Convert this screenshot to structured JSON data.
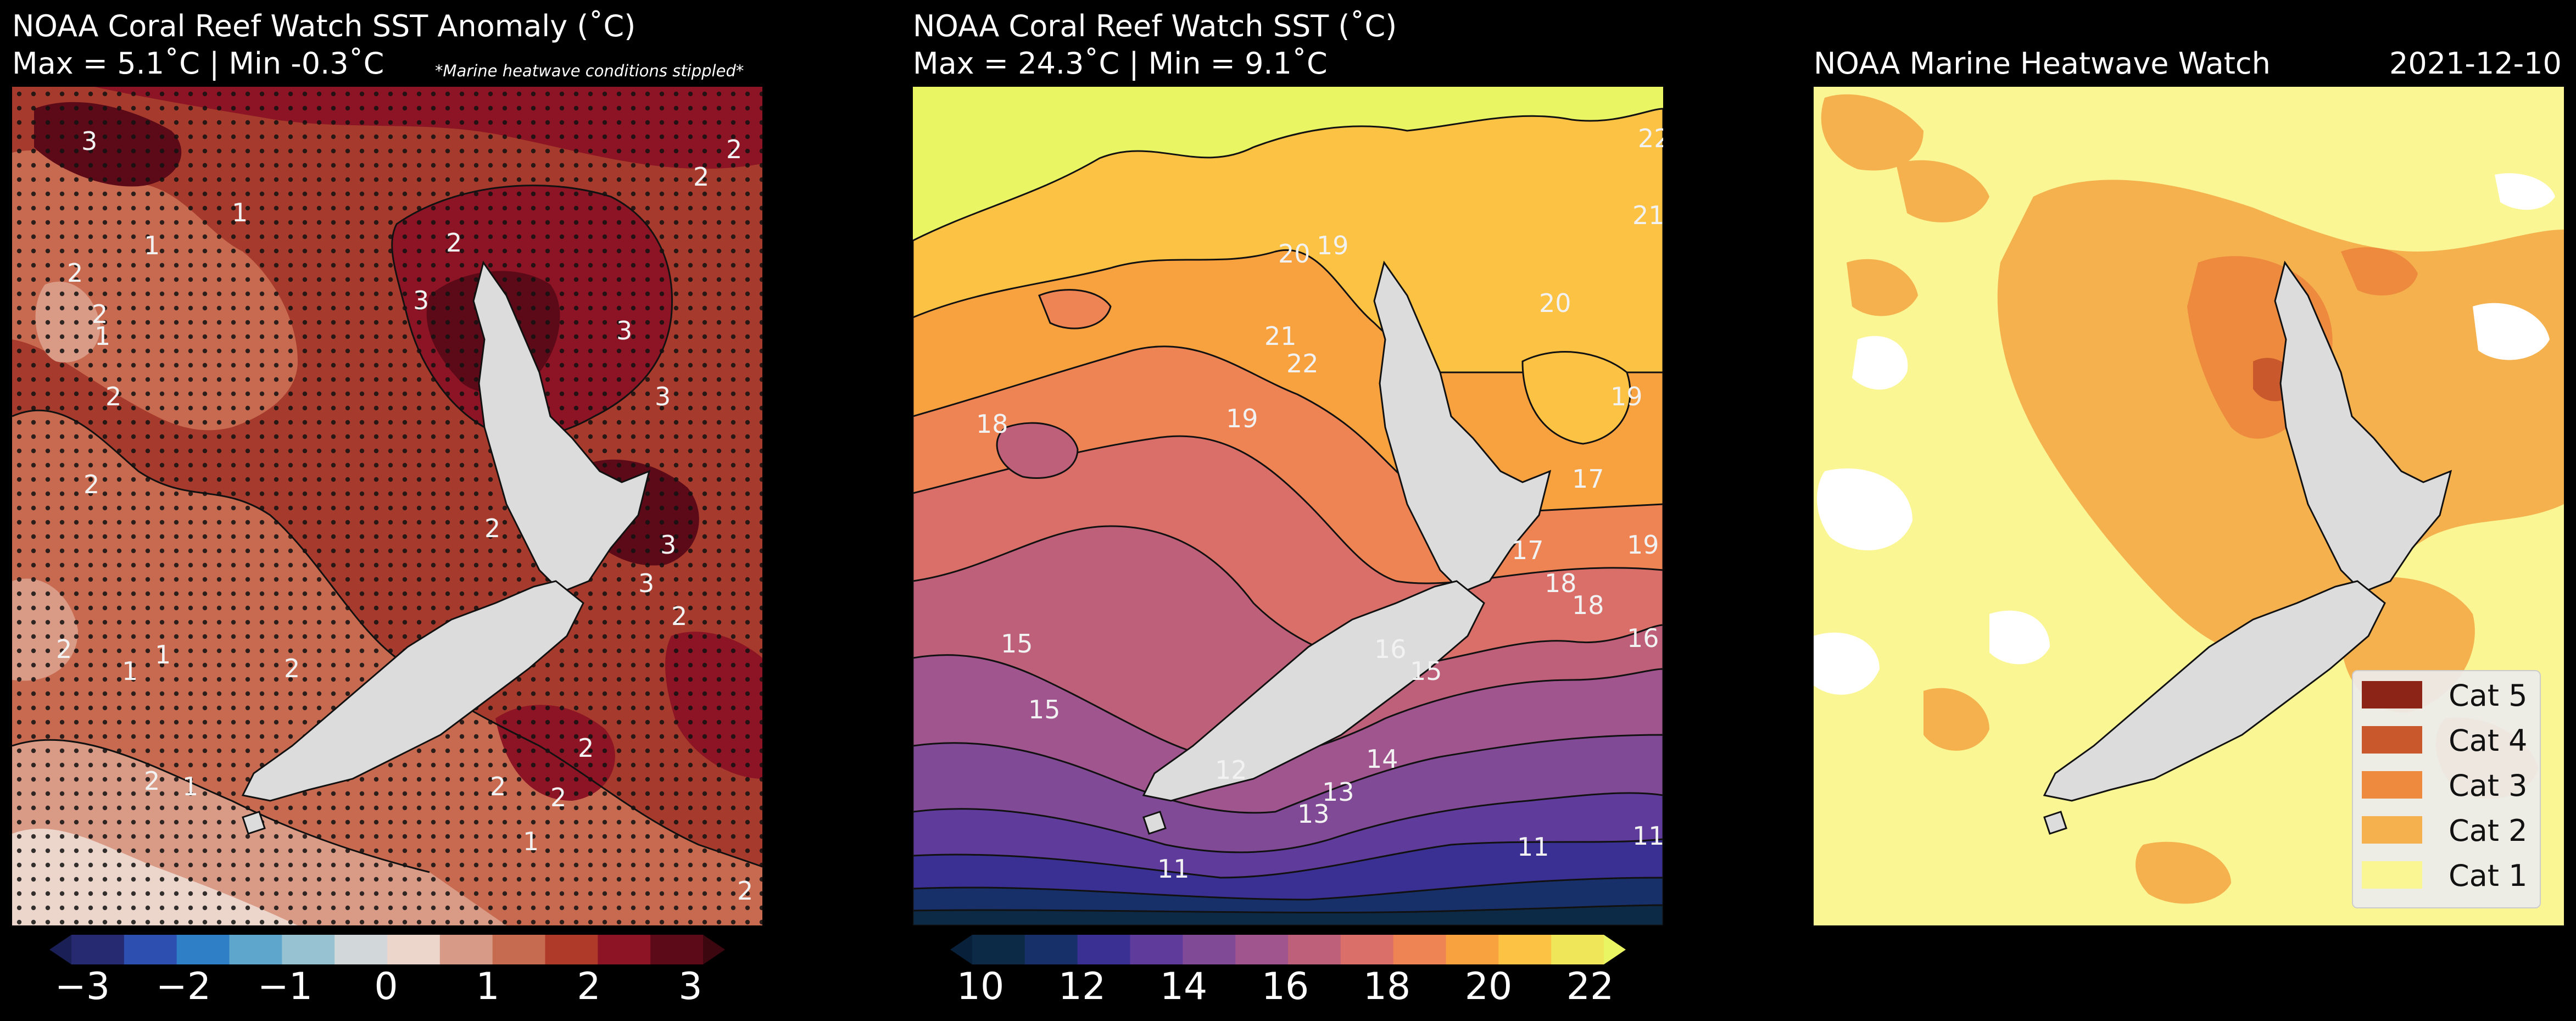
{
  "panels": [
    {
      "title": "NOAA Coral Reef Watch SST Anomaly (˚C)",
      "subtitle": "Max = 5.1˚C | Min -0.3˚C",
      "note": "*Marine heatwave conditions stippled*",
      "colorbar": {
        "ticks": [
          "−3",
          "−2",
          "−1",
          "0",
          "1",
          "2",
          "3"
        ],
        "colors": [
          "#262a70",
          "#2c4fb0",
          "#2e7fc6",
          "#5ea6cb",
          "#96c2d2",
          "#d2d8da",
          "#ecd6cc",
          "#d69a86",
          "#c66a50",
          "#b03a2a",
          "#8c1424",
          "#5c0a18"
        ],
        "extend_low": "#1a1f55",
        "extend_high": "#3d0710"
      },
      "contour_labels": [
        "3",
        "2",
        "2",
        "2",
        "2",
        "1",
        "1",
        "2",
        "1",
        "2",
        "3",
        "3",
        "3",
        "2",
        "3",
        "3",
        "2",
        "2",
        "1",
        "1",
        "2",
        "2",
        "2",
        "2",
        "2",
        "1",
        "1",
        "2",
        "2"
      ]
    },
    {
      "title": "NOAA Coral Reef Watch SST (˚C)",
      "subtitle": "Max = 24.3˚C | Min = 9.1˚C",
      "colorbar": {
        "ticks": [
          "10",
          "12",
          "14",
          "16",
          "18",
          "20",
          "22"
        ],
        "colors": [
          "#0c2a45",
          "#17306a",
          "#3a2f92",
          "#5f3c9c",
          "#814a96",
          "#a0558f",
          "#be6079",
          "#d96f68",
          "#ee8454",
          "#f7a13f",
          "#fbc243",
          "#efe65a"
        ],
        "extend_low": "#08203a",
        "extend_high": "#e9f562"
      },
      "contour_labels": [
        "18",
        "19",
        "20",
        "19",
        "21",
        "22",
        "22",
        "21",
        "20",
        "19",
        "18",
        "18",
        "17",
        "17",
        "19",
        "16",
        "16",
        "15",
        "15",
        "15",
        "14",
        "13",
        "13",
        "12",
        "11",
        "11",
        "11"
      ]
    },
    {
      "title": "NOAA Marine Heatwave Watch",
      "date": "2021-12-10",
      "legend": [
        {
          "label": "Cat 5",
          "color": "#8c2418"
        },
        {
          "label": "Cat 4",
          "color": "#c9592c"
        },
        {
          "label": "Cat 3",
          "color": "#ee8a3e"
        },
        {
          "label": "Cat 2",
          "color": "#f5b14e"
        },
        {
          "label": "Cat 1",
          "color": "#fbf694"
        }
      ]
    }
  ]
}
